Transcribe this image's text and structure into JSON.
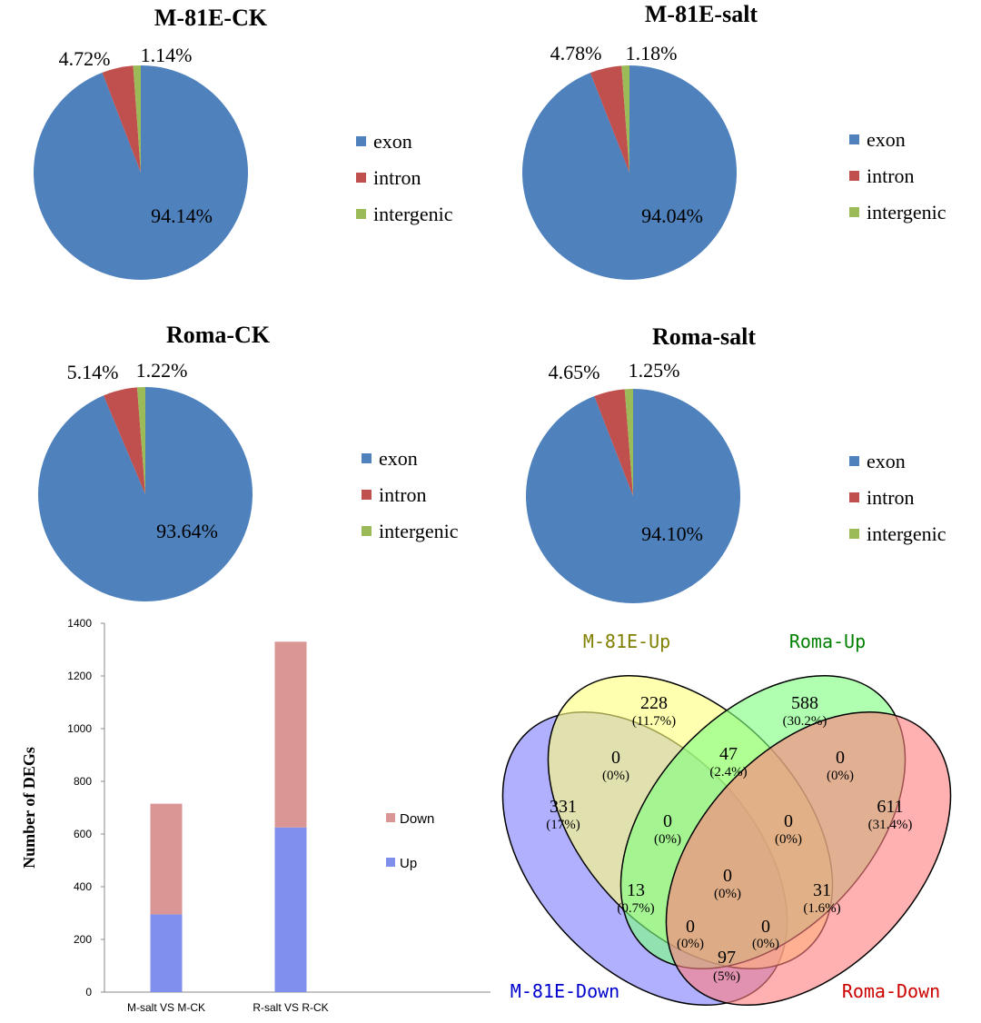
{
  "colors": {
    "exon": "#4F81BD",
    "intron": "#C0504D",
    "intergenic": "#9BBB59",
    "bar_up": "#7F8FEB",
    "bar_down": "#D99694",
    "venn_m81e_up": "#FFFF80",
    "venn_roma_up": "#80FF80",
    "venn_roma_down": "#FF7F7F",
    "venn_m81e_down": "#8080FF"
  },
  "chart_data": [
    {
      "type": "pie",
      "title": "M-81E-CK",
      "labels": [
        "exon",
        "intron",
        "intergenic"
      ],
      "values": [
        94.14,
        4.72,
        1.14
      ],
      "value_labels": [
        "94.14%",
        "4.72%",
        "1.14%"
      ],
      "legend": [
        "exon",
        "intron",
        "intergenic"
      ],
      "legend_position": "right"
    },
    {
      "type": "pie",
      "title": "M-81E-salt",
      "labels": [
        "exon",
        "intron",
        "intergenic"
      ],
      "values": [
        94.04,
        4.78,
        1.18
      ],
      "value_labels": [
        "94.04%",
        "4.78%",
        "1.18%"
      ],
      "legend": [
        "exon",
        "intron",
        "intergenic"
      ],
      "legend_position": "right"
    },
    {
      "type": "pie",
      "title": "Roma-CK",
      "labels": [
        "exon",
        "intron",
        "intergenic"
      ],
      "values": [
        93.64,
        5.14,
        1.22
      ],
      "value_labels": [
        "93.64%",
        "5.14%",
        "1.22%"
      ],
      "legend": [
        "exon",
        "intron",
        "intergenic"
      ],
      "legend_position": "right"
    },
    {
      "type": "pie",
      "title": "Roma-salt",
      "labels": [
        "exon",
        "intron",
        "intergenic"
      ],
      "values": [
        94.1,
        4.65,
        1.25
      ],
      "value_labels": [
        "94.10%",
        "4.65%",
        "1.25%"
      ],
      "legend": [
        "exon",
        "intron",
        "intergenic"
      ],
      "legend_position": "right"
    },
    {
      "type": "bar",
      "stacked": true,
      "categories": [
        "M-salt VS M-CK",
        "R-salt VS R-CK"
      ],
      "series": [
        {
          "name": "Up",
          "values": [
            295,
            625
          ]
        },
        {
          "name": "Down",
          "values": [
            420,
            705
          ]
        }
      ],
      "ylabel": "Number of DEGs",
      "ylim": [
        0,
        1400
      ],
      "yticks": [
        "0",
        "200",
        "400",
        "600",
        "800",
        "1000",
        "1200",
        "1400"
      ],
      "legend": [
        "Down",
        "Up"
      ],
      "legend_position": "right",
      "grid": false
    },
    {
      "type": "venn",
      "sets": [
        "M-81E-Up",
        "Roma-Up",
        "M-81E-Down",
        "Roma-Down"
      ],
      "regions": [
        {
          "sets": [
            "M-81E-Up"
          ],
          "count": "228",
          "percent": "(11.7%)"
        },
        {
          "sets": [
            "Roma-Up"
          ],
          "count": "588",
          "percent": "(30.2%)"
        },
        {
          "sets": [
            "M-81E-Down"
          ],
          "count": "331",
          "percent": "(17%)"
        },
        {
          "sets": [
            "Roma-Down"
          ],
          "count": "611",
          "percent": "(31.4%)"
        },
        {
          "sets": [
            "M-81E-Up",
            "Roma-Up"
          ],
          "count": "47",
          "percent": "(2.4%)"
        },
        {
          "sets": [
            "M-81E-Up",
            "M-81E-Down"
          ],
          "count": "0",
          "percent": "(0%)"
        },
        {
          "sets": [
            "Roma-Up",
            "Roma-Down"
          ],
          "count": "0",
          "percent": "(0%)"
        },
        {
          "sets": [
            "M-81E-Up",
            "Roma-Up",
            "M-81E-Down"
          ],
          "count": "0",
          "percent": "(0%)"
        },
        {
          "sets": [
            "M-81E-Up",
            "Roma-Up",
            "Roma-Down"
          ],
          "count": "0",
          "percent": "(0%)"
        },
        {
          "sets": [
            "Roma-Up",
            "M-81E-Down"
          ],
          "count": "13",
          "percent": "(0.7%)"
        },
        {
          "sets": [
            "M-81E-Up",
            "Roma-Down"
          ],
          "count": "31",
          "percent": "(1.6%)"
        },
        {
          "sets": [
            "M-81E-Up",
            "Roma-Up",
            "M-81E-Down",
            "Roma-Down"
          ],
          "count": "0",
          "percent": "(0%)"
        },
        {
          "sets": [
            "Roma-Up",
            "M-81E-Down",
            "Roma-Down"
          ],
          "count": "0",
          "percent": "(0%)"
        },
        {
          "sets": [
            "M-81E-Up",
            "M-81E-Down",
            "Roma-Down"
          ],
          "count": "0",
          "percent": "(0%)"
        },
        {
          "sets": [
            "M-81E-Down",
            "Roma-Down"
          ],
          "count": "97",
          "percent": "(5%)"
        }
      ]
    }
  ]
}
